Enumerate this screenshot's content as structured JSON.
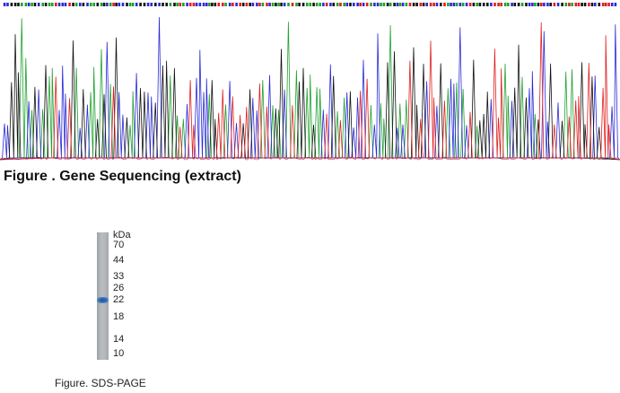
{
  "sequencing": {
    "caption": "Figure . Gene Sequencing (extract)",
    "trace_colors": {
      "A": "#1fa12f",
      "C": "#2a2ad8",
      "G": "#111111",
      "T": "#e01f1f"
    }
  },
  "sds_page": {
    "caption": "Figure. SDS-PAGE",
    "unit_label": "kDa",
    "markers": [
      "70",
      "44",
      "33",
      "26",
      "22",
      "18",
      "14",
      "10"
    ],
    "band_kda": 22
  }
}
